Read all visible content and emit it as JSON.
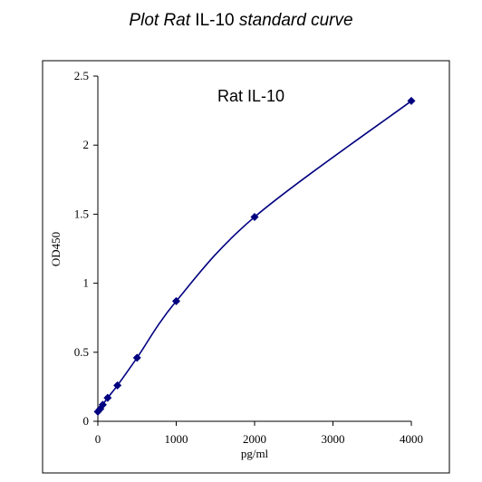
{
  "title": {
    "part1": "Plot Rat",
    "part2": " IL-10 ",
    "part3": "standard curve"
  },
  "colors": {
    "series": "#000080",
    "frame": "#000000",
    "background": "#ffffff"
  },
  "chart_data": {
    "type": "scatter",
    "title": "Plot Rat IL-10 standard curve",
    "annotation": "Rat IL-10",
    "xlabel": "pg/ml",
    "ylabel": "OD450",
    "xlim": [
      0,
      4000
    ],
    "ylim": [
      0,
      2.5
    ],
    "x_ticks": [
      0,
      1000,
      2000,
      3000,
      4000
    ],
    "x_tick_labels": [
      "0",
      "1000",
      "2000",
      "3000",
      "4000"
    ],
    "y_ticks": [
      0,
      0.5,
      1,
      1.5,
      2,
      2.5
    ],
    "y_tick_labels": [
      "0",
      "0.5",
      "1",
      "1.5",
      "2",
      "2.5"
    ],
    "grid": false,
    "legend": "none",
    "marker": "diamond",
    "smooth_line": true,
    "series": [
      {
        "x": [
          0,
          31.25,
          62.5,
          125,
          250,
          500,
          1000,
          2000,
          4000
        ],
        "y": [
          0.07,
          0.09,
          0.12,
          0.17,
          0.26,
          0.46,
          0.87,
          1.48,
          2.32
        ]
      }
    ]
  }
}
